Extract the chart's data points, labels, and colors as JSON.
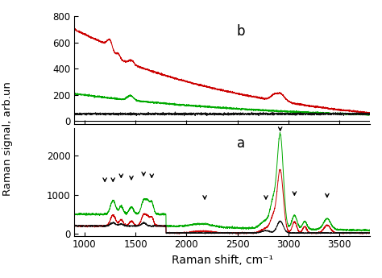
{
  "x_range": [
    900,
    3800
  ],
  "panel_b": {
    "label": "b",
    "ylim": [
      -20,
      800
    ],
    "yticks": [
      0,
      200,
      400,
      600,
      800
    ]
  },
  "panel_a": {
    "label": "a",
    "ylim": [
      -50,
      2700
    ],
    "yticks": [
      0,
      1000,
      2000
    ]
  },
  "colors": {
    "red": "#cc0000",
    "green": "#00aa00",
    "black": "#111111"
  },
  "xlabel": "Raman shift, cm⁻¹",
  "ylabel": "Raman signal, arb.un",
  "fig_width": 4.74,
  "fig_height": 3.45,
  "dpi": 100
}
